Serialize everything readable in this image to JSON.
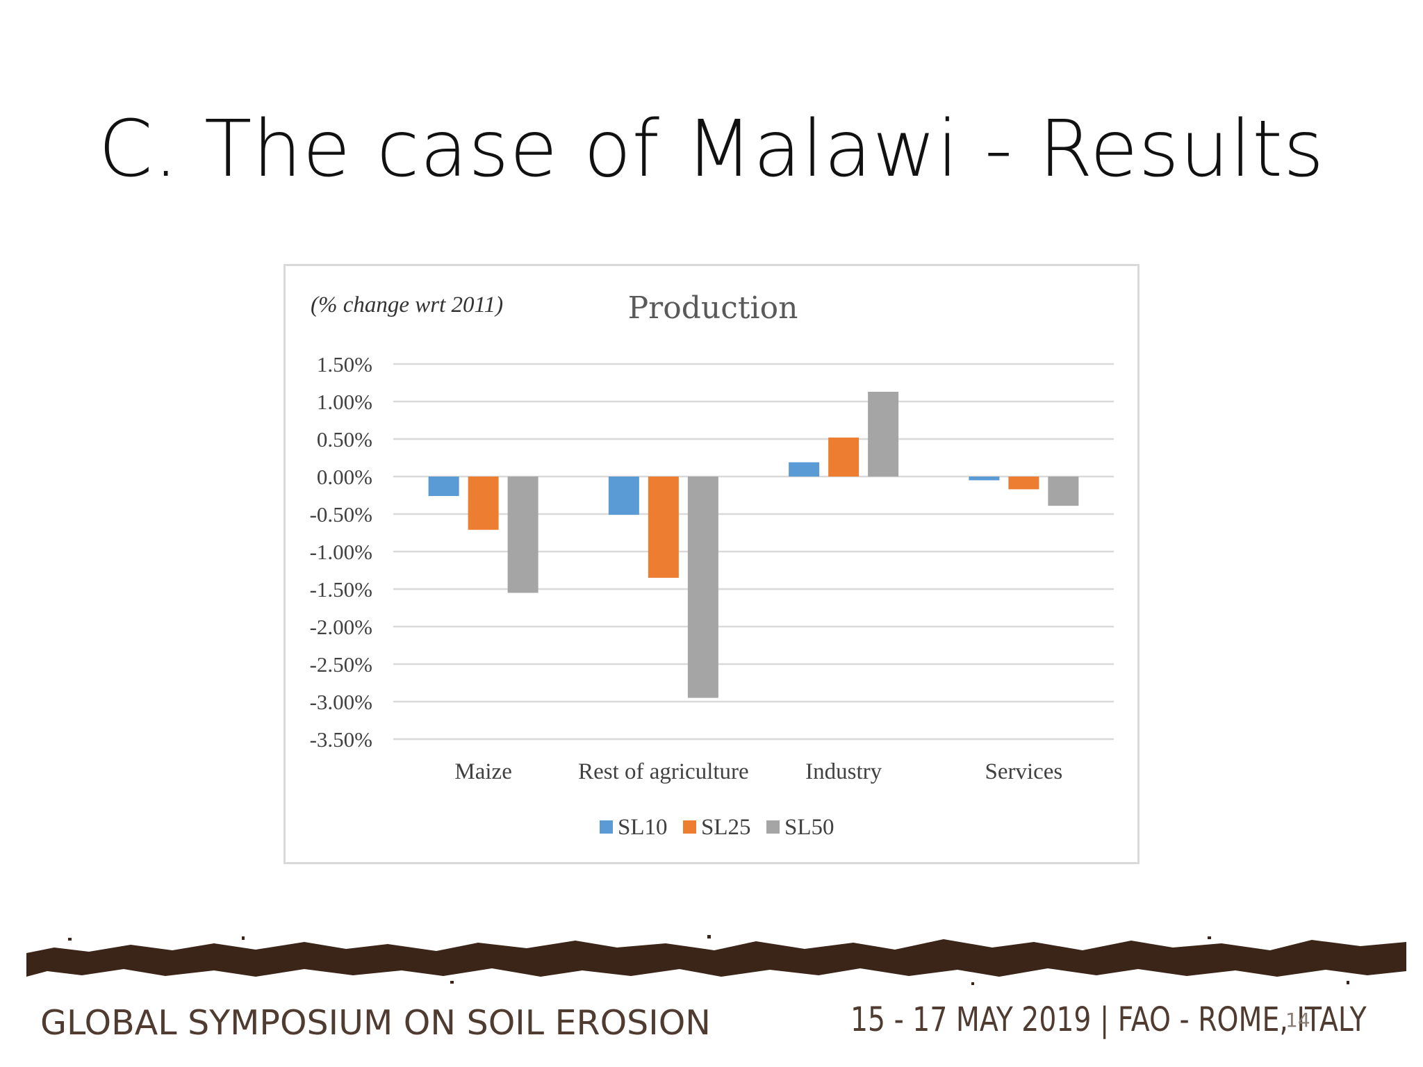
{
  "slide": {
    "title": "C. The case of Malawi - Results",
    "page_number": "14"
  },
  "footer": {
    "left_text": "GLOBAL SYMPOSIUM ON SOIL EROSION",
    "right_text": "15 - 17 MAY 2019 | FAO - ROME, ITALY"
  },
  "colors": {
    "SL10": "#5b9bd5",
    "SL25": "#ed7d31",
    "SL50": "#a5a5a5",
    "grid": "#d9d9d9",
    "soil": "#3b2418"
  },
  "chart_data": {
    "type": "bar",
    "title": "Production",
    "unit_note": "(% change wrt 2011)",
    "categories": [
      "Maize",
      "Rest of agriculture",
      "Industry",
      "Services"
    ],
    "series": [
      {
        "name": "SL10",
        "values": [
          -0.26,
          -0.51,
          0.19,
          -0.05
        ]
      },
      {
        "name": "SL25",
        "values": [
          -0.71,
          -1.35,
          0.52,
          -0.17
        ]
      },
      {
        "name": "SL50",
        "values": [
          -1.55,
          -2.95,
          1.13,
          -0.39
        ]
      }
    ],
    "ylim": [
      -3.5,
      1.5
    ],
    "yticks": [
      1.5,
      1.0,
      0.5,
      0.0,
      -0.5,
      -1.0,
      -1.5,
      -2.0,
      -2.5,
      -3.0,
      -3.5
    ],
    "ytick_labels": [
      "1.50%",
      "1.00%",
      "0.50%",
      "0.00%",
      "-0.50%",
      "-1.00%",
      "-1.50%",
      "-2.00%",
      "-2.50%",
      "-3.00%",
      "-3.50%"
    ],
    "grid": true,
    "legend": "bottom"
  }
}
